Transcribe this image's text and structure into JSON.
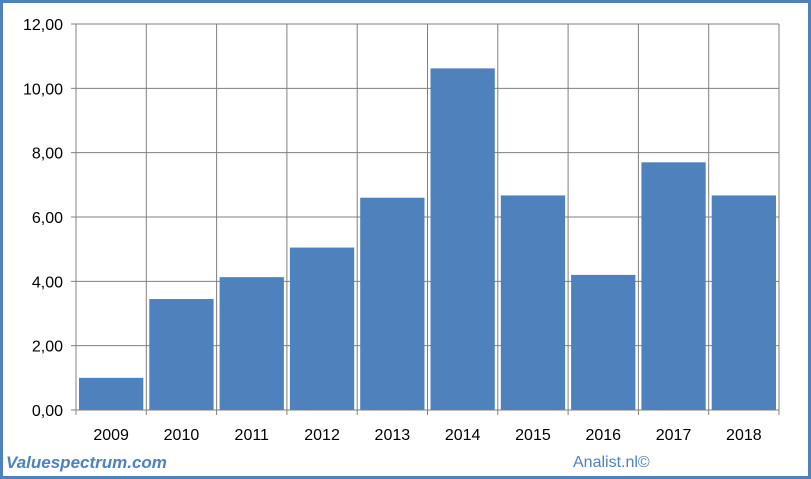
{
  "chart_data": {
    "type": "bar",
    "categories": [
      "2009",
      "2010",
      "2011",
      "2012",
      "2013",
      "2014",
      "2015",
      "2016",
      "2017",
      "2018"
    ],
    "values": [
      1.0,
      3.45,
      4.13,
      5.05,
      6.6,
      10.62,
      6.67,
      4.2,
      7.7,
      6.67
    ],
    "ylim": [
      0,
      12
    ],
    "yticks": [
      "0,00",
      "2,00",
      "4,00",
      "6,00",
      "8,00",
      "10,00",
      "12,00"
    ],
    "grid": true,
    "bar_color": "#4f81bd",
    "title": "",
    "xlabel": "",
    "ylabel": ""
  },
  "footer": {
    "left_text": "Valuespectrum.com",
    "right_text": "Analist.nl©"
  },
  "colors": {
    "accent": "#4f81bd",
    "grid": "#808080"
  }
}
